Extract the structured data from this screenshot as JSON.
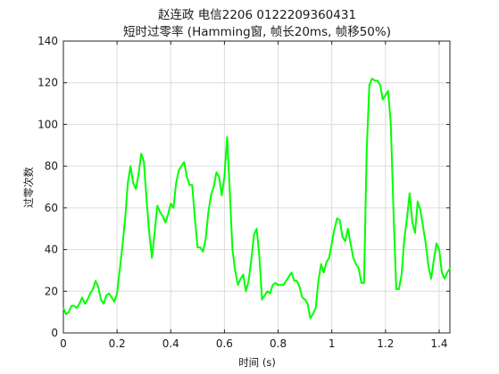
{
  "chart_data": {
    "type": "line",
    "title": [
      "赵连政 电信2206 0122209360431",
      "短时过零率 (Hamming窗, 帧长20ms, 帧移50%)"
    ],
    "xlabel": "时间 (s)",
    "ylabel": "过零次数",
    "xlim": [
      0,
      1.44
    ],
    "ylim": [
      0,
      140
    ],
    "xticks": [
      "0",
      "0.2",
      "0.4",
      "0.6",
      "0.8",
      "1",
      "1.2",
      "1.4"
    ],
    "xtick_values": [
      0,
      0.2,
      0.4,
      0.6,
      0.8,
      1.0,
      1.2,
      1.4
    ],
    "yticks": [
      "0",
      "20",
      "40",
      "60",
      "80",
      "100",
      "120",
      "140"
    ],
    "ytick_values": [
      0,
      20,
      40,
      60,
      80,
      100,
      120,
      140
    ],
    "grid": true,
    "series": [
      {
        "color": "#00ff00",
        "x": [
          0.0,
          0.01,
          0.02,
          0.03,
          0.04,
          0.05,
          0.06,
          0.07,
          0.08,
          0.09,
          0.1,
          0.11,
          0.12,
          0.13,
          0.14,
          0.15,
          0.16,
          0.17,
          0.18,
          0.19,
          0.2,
          0.21,
          0.22,
          0.23,
          0.24,
          0.25,
          0.26,
          0.27,
          0.28,
          0.29,
          0.3,
          0.31,
          0.32,
          0.33,
          0.34,
          0.35,
          0.36,
          0.37,
          0.38,
          0.39,
          0.4,
          0.41,
          0.42,
          0.43,
          0.44,
          0.45,
          0.46,
          0.47,
          0.48,
          0.49,
          0.5,
          0.51,
          0.52,
          0.53,
          0.54,
          0.55,
          0.56,
          0.57,
          0.58,
          0.59,
          0.6,
          0.61,
          0.62,
          0.63,
          0.64,
          0.65,
          0.66,
          0.67,
          0.68,
          0.69,
          0.7,
          0.71,
          0.72,
          0.73,
          0.74,
          0.75,
          0.76,
          0.77,
          0.78,
          0.79,
          0.8,
          0.81,
          0.82,
          0.83,
          0.84,
          0.85,
          0.86,
          0.87,
          0.88,
          0.89,
          0.9,
          0.91,
          0.92,
          0.93,
          0.94,
          0.95,
          0.96,
          0.97,
          0.98,
          0.99,
          1.0,
          1.01,
          1.02,
          1.03,
          1.04,
          1.05,
          1.06,
          1.07,
          1.08,
          1.09,
          1.1,
          1.11,
          1.12,
          1.13,
          1.14,
          1.15,
          1.16,
          1.17,
          1.18,
          1.19,
          1.2,
          1.21,
          1.22,
          1.23,
          1.24,
          1.25,
          1.26,
          1.27,
          1.28,
          1.29,
          1.3,
          1.31,
          1.32,
          1.33,
          1.34,
          1.35,
          1.36,
          1.37,
          1.38,
          1.39,
          1.4,
          1.41,
          1.42,
          1.43,
          1.44
        ],
        "y": [
          12,
          9,
          10,
          13,
          13,
          12,
          14,
          17,
          14,
          16,
          19,
          21,
          25,
          22,
          16,
          14,
          18,
          19,
          17,
          15,
          19,
          30,
          42,
          55,
          72,
          80,
          72,
          69,
          76,
          86,
          82,
          64,
          48,
          36,
          48,
          61,
          58,
          56,
          53,
          57,
          62,
          60,
          72,
          78,
          80,
          82,
          75,
          71,
          71,
          55,
          41,
          41,
          39,
          45,
          58,
          66,
          70,
          77,
          75,
          66,
          75,
          94,
          68,
          40,
          30,
          23,
          26,
          28,
          20,
          25,
          35,
          47,
          50,
          37,
          16,
          18,
          20,
          19,
          23,
          24,
          23,
          23,
          23,
          25,
          27,
          29,
          25,
          25,
          22,
          17,
          16,
          14,
          7,
          9,
          12,
          25,
          33,
          29,
          34,
          36,
          43,
          50,
          55,
          54,
          46,
          44,
          50,
          43,
          36,
          33,
          31,
          24,
          24,
          88,
          119,
          122,
          121,
          121,
          119,
          112,
          114,
          116,
          100,
          57,
          21,
          21,
          28,
          45,
          55,
          67,
          53,
          48,
          63,
          59,
          51,
          43,
          32,
          26,
          35,
          43,
          40,
          29,
          26,
          29,
          31
        ]
      }
    ]
  }
}
